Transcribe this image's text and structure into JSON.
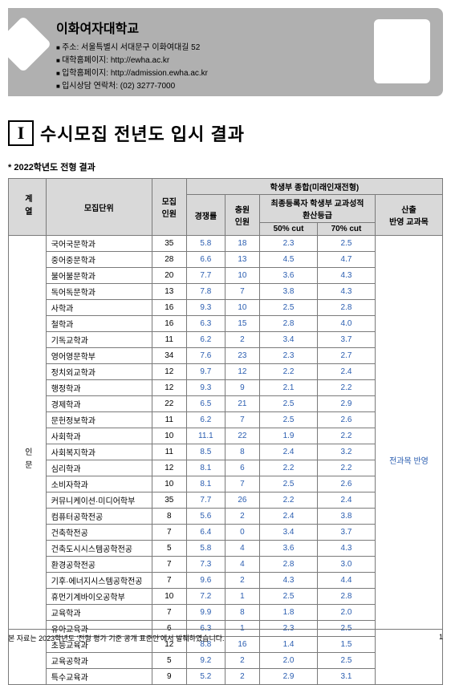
{
  "header": {
    "univ": "이화여자대학교",
    "addr": "주소: 서울특별시 서대문구 이화여대길 52",
    "site1": "대학홈페이지: http://ewha.ac.kr",
    "site2": "입학홈페이지: http://admission.ewha.ac.kr",
    "tel": "입시상담 연락처: (02) 3277-7000"
  },
  "section": {
    "num": "I",
    "title": "수시모집 전년도 입시 결과"
  },
  "subtitle": "* 2022학년도 전형 결과",
  "table": {
    "headers": {
      "cat": "계열",
      "unit": "모집단위",
      "recruit": "모집\n인원",
      "rate": "경쟁률",
      "add": "충원\n인원",
      "group": "학생부 종합(미래인재전형)",
      "conv": "최종등록자 학생부 교과성적\n환산등급",
      "cut50": "50% cut",
      "cut70": "70% cut",
      "subj": "산출\n반영 교과목"
    },
    "cat_label": "인문",
    "reflect": "전과목 반영",
    "rows": [
      {
        "u": "국어국문학과",
        "a": "35",
        "b": "5.8",
        "c": "18",
        "d": "2.3",
        "e": "2.5"
      },
      {
        "u": "중어중문학과",
        "a": "28",
        "b": "6.6",
        "c": "13",
        "d": "4.5",
        "e": "4.7"
      },
      {
        "u": "불어불문학과",
        "a": "20",
        "b": "7.7",
        "c": "10",
        "d": "3.6",
        "e": "4.3"
      },
      {
        "u": "독어독문학과",
        "a": "13",
        "b": "7.8",
        "c": "7",
        "d": "3.8",
        "e": "4.3"
      },
      {
        "u": "사학과",
        "a": "16",
        "b": "9.3",
        "c": "10",
        "d": "2.5",
        "e": "2.8"
      },
      {
        "u": "철학과",
        "a": "16",
        "b": "6.3",
        "c": "15",
        "d": "2.8",
        "e": "4.0"
      },
      {
        "u": "기독교학과",
        "a": "11",
        "b": "6.2",
        "c": "2",
        "d": "3.4",
        "e": "3.7"
      },
      {
        "u": "영어영문학부",
        "a": "34",
        "b": "7.6",
        "c": "23",
        "d": "2.3",
        "e": "2.7"
      },
      {
        "u": "정치외교학과",
        "a": "12",
        "b": "9.7",
        "c": "12",
        "d": "2.2",
        "e": "2.4"
      },
      {
        "u": "행정학과",
        "a": "12",
        "b": "9.3",
        "c": "9",
        "d": "2.1",
        "e": "2.2"
      },
      {
        "u": "경제학과",
        "a": "22",
        "b": "6.5",
        "c": "21",
        "d": "2.5",
        "e": "2.9"
      },
      {
        "u": "문헌정보학과",
        "a": "11",
        "b": "6.2",
        "c": "7",
        "d": "2.5",
        "e": "2.6"
      },
      {
        "u": "사회학과",
        "a": "10",
        "b": "11.1",
        "c": "22",
        "d": "1.9",
        "e": "2.2"
      },
      {
        "u": "사회복지학과",
        "a": "11",
        "b": "8.5",
        "c": "8",
        "d": "2.4",
        "e": "3.2"
      },
      {
        "u": "심리학과",
        "a": "12",
        "b": "8.1",
        "c": "6",
        "d": "2.2",
        "e": "2.2"
      },
      {
        "u": "소비자학과",
        "a": "10",
        "b": "8.1",
        "c": "7",
        "d": "2.5",
        "e": "2.6"
      },
      {
        "u": "커뮤니케이션·미디어학부",
        "a": "35",
        "b": "7.7",
        "c": "26",
        "d": "2.2",
        "e": "2.4"
      },
      {
        "u": "컴퓨터공학전공",
        "a": "8",
        "b": "5.6",
        "c": "2",
        "d": "2.4",
        "e": "3.8"
      },
      {
        "u": "건축학전공",
        "a": "7",
        "b": "6.4",
        "c": "0",
        "d": "3.4",
        "e": "3.7"
      },
      {
        "u": "건축도시시스템공학전공",
        "a": "5",
        "b": "5.8",
        "c": "4",
        "d": "3.6",
        "e": "4.3"
      },
      {
        "u": "환경공학전공",
        "a": "7",
        "b": "7.3",
        "c": "4",
        "d": "2.8",
        "e": "3.0"
      },
      {
        "u": "기후·에너지시스템공학전공",
        "a": "7",
        "b": "9.6",
        "c": "2",
        "d": "4.3",
        "e": "4.4"
      },
      {
        "u": "휴먼기계바이오공학부",
        "a": "10",
        "b": "7.2",
        "c": "1",
        "d": "2.5",
        "e": "2.8"
      },
      {
        "u": "교육학과",
        "a": "7",
        "b": "9.9",
        "c": "8",
        "d": "1.8",
        "e": "2.0"
      },
      {
        "u": "유아교육과",
        "a": "6",
        "b": "6.3",
        "c": "1",
        "d": "2.3",
        "e": "2.5"
      },
      {
        "u": "초등교육과",
        "a": "12",
        "b": "8.8",
        "c": "16",
        "d": "1.4",
        "e": "1.5"
      },
      {
        "u": "교육공학과",
        "a": "5",
        "b": "9.2",
        "c": "2",
        "d": "2.0",
        "e": "2.5"
      },
      {
        "u": "특수교육과",
        "a": "9",
        "b": "5.2",
        "c": "2",
        "d": "2.9",
        "e": "3.1"
      }
    ]
  },
  "footer": {
    "text": "본 자료는 2023학년도 '전형 평가 기준 공개 표준안'에서 발췌하였습니다.",
    "page": "1"
  }
}
